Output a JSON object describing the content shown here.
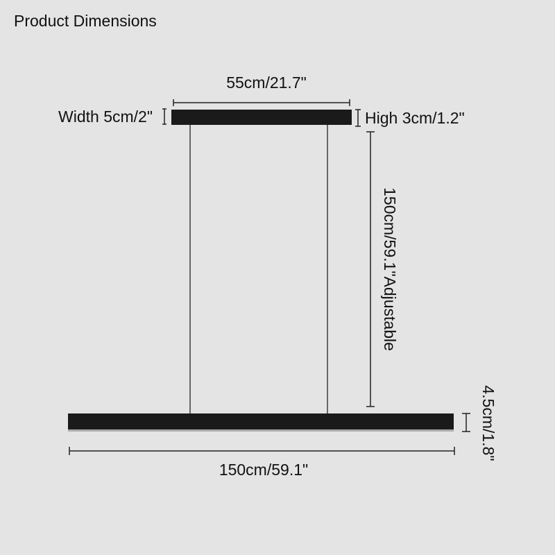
{
  "title": "Product Dimensions",
  "labels": {
    "canopy_length": "55cm/21.7\"",
    "canopy_width": "Width 5cm/2\"",
    "canopy_height": "High 3cm/1.2\"",
    "cable_length": "150cm/59.1\"Adjustable",
    "bar_height": "4.5cm/1.8\"",
    "bar_length": "150cm/59.1\""
  }
}
